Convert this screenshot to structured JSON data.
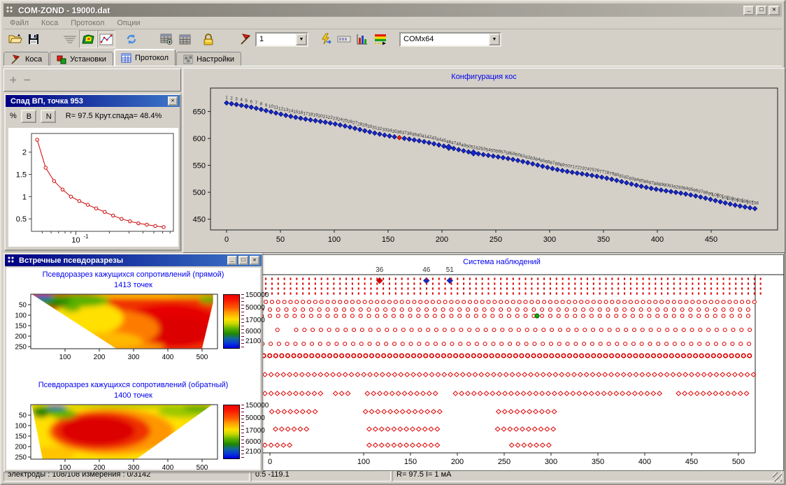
{
  "window": {
    "title": "COM-ZOND - 19000.dat"
  },
  "menu": {
    "items": [
      "Файл",
      "Коса",
      "Протокол",
      "Опции"
    ]
  },
  "toolbar": {
    "point_number": "1",
    "com_port": "COMx64"
  },
  "tabs": {
    "items": [
      "Коса",
      "Установки",
      "Протокол",
      "Настройки"
    ],
    "active": "Протокол"
  },
  "mini_toolbar": {
    "add": "+",
    "remove": "−"
  },
  "decay_window": {
    "title": "Спад ВП, точка 953",
    "percent": "%",
    "btn_b": "B",
    "btn_n": "N",
    "info": "R= 97.5  Крут.спада= 48.4%"
  },
  "pseudo_window": {
    "title": "Встречные псевдоразрезы"
  },
  "statusbar": {
    "sections": [
      "электроды : 108/108 измерения : 0/3142",
      "0.5 -119.1",
      "R= 97.5 I= 1 мА"
    ]
  },
  "chart_data": [
    {
      "id": "decay",
      "type": "line",
      "marker": "circle",
      "color": "#cc0000",
      "x_log": true,
      "x_major_tick_value": 0.1,
      "x_major_tick_label": "10⁻¹",
      "x_range": [
        0.04,
        0.75
      ],
      "y_range": [
        0.22,
        2.42
      ],
      "y_ticks": [
        0.5,
        1,
        1.5,
        2
      ],
      "x": [
        0.045,
        0.0536,
        0.0638,
        0.0759,
        0.0903,
        0.1075,
        0.128,
        0.1523,
        0.1813,
        0.2158,
        0.2568,
        0.3056,
        0.3637,
        0.4329,
        0.5152,
        0.6132
      ],
      "y": [
        2.28,
        1.65,
        1.35,
        1.16,
        1.0,
        0.9,
        0.815,
        0.735,
        0.655,
        0.575,
        0.5,
        0.445,
        0.4,
        0.37,
        0.34,
        0.315
      ]
    },
    {
      "id": "config",
      "type": "scatter",
      "title": "Конфигурация кос",
      "marker": "diamond",
      "color": "#1428c8",
      "n": 108,
      "x0": 0,
      "dx": 4.585,
      "y0": 666,
      "dy": -1.832,
      "x_ticks": [
        0,
        50,
        100,
        150,
        200,
        250,
        300,
        350,
        400,
        450
      ],
      "y_ticks": [
        450,
        500,
        550,
        600,
        650
      ],
      "highlight_red": 36,
      "highlight_big": [
        46,
        51
      ]
    },
    {
      "id": "pseudo_direct",
      "type": "heatmap",
      "title": "Псевдоразрез кажущихся сопротивлений (прямой)",
      "subtitle": "1413 точек",
      "levels": [
        "150000",
        "50000",
        "17000",
        "6000",
        "2100"
      ],
      "x_ticks": [
        100,
        200,
        300,
        400,
        500
      ],
      "y_ticks": [
        50,
        100,
        150,
        200,
        250
      ],
      "region": [
        [
          5,
          2
        ],
        [
          532,
          2
        ],
        [
          532,
          40
        ],
        [
          500,
          258
        ],
        [
          248,
          258
        ]
      ],
      "blobs": [
        {
          "cx": 270,
          "cy": 130,
          "rx": 400,
          "ry": 300,
          "c": "#f03000",
          "o": 1
        },
        {
          "cx": 410,
          "cy": 150,
          "rx": 150,
          "ry": 105,
          "c": "#e60000",
          "o": 1
        },
        {
          "cx": 430,
          "cy": 175,
          "rx": 95,
          "ry": 65,
          "c": "#dc0000",
          "o": 1
        },
        {
          "cx": 255,
          "cy": 165,
          "rx": 120,
          "ry": 85,
          "c": "#ff8800",
          "o": 0.9
        },
        {
          "cx": 165,
          "cy": 115,
          "rx": 105,
          "ry": 80,
          "c": "#ffe000",
          "o": 1
        },
        {
          "cx": 215,
          "cy": 225,
          "rx": 110,
          "ry": 45,
          "c": "#ffc000",
          "o": 0.9
        },
        {
          "cx": 300,
          "cy": 252,
          "rx": 90,
          "ry": 25,
          "c": "#ffb000",
          "o": 0.8
        },
        {
          "cx": 330,
          "cy": 6,
          "rx": 220,
          "ry": 10,
          "c": "#ffe800",
          "o": 0.9
        },
        {
          "cx": 140,
          "cy": 30,
          "rx": 90,
          "ry": 30,
          "c": "#58b000",
          "o": 1
        },
        {
          "cx": 60,
          "cy": 30,
          "rx": 60,
          "ry": 28,
          "c": "#2f9800",
          "o": 1
        },
        {
          "cx": 35,
          "cy": 12,
          "rx": 28,
          "ry": 12,
          "c": "#1048d0",
          "o": 1
        },
        {
          "cx": 75,
          "cy": 50,
          "rx": 30,
          "ry": 16,
          "c": "#187800",
          "o": 0.9
        },
        {
          "cx": 120,
          "cy": 70,
          "rx": 25,
          "ry": 14,
          "c": "#4aa800",
          "o": 0.8
        },
        {
          "cx": 520,
          "cy": 25,
          "rx": 28,
          "ry": 20,
          "c": "#58b000",
          "o": 0.9
        },
        {
          "cx": 470,
          "cy": 8,
          "rx": 60,
          "ry": 8,
          "c": "#c8d800",
          "o": 0.8
        }
      ]
    },
    {
      "id": "pseudo_reverse",
      "type": "heatmap",
      "title": "Псевдоразрез кажущихся сопротивлений (обратный)",
      "subtitle": "1400 точек",
      "levels": [
        "150000",
        "50000",
        "17000",
        "6000",
        "2100"
      ],
      "x_ticks": [
        100,
        200,
        300,
        400,
        500
      ],
      "y_ticks": [
        50,
        100,
        150,
        200,
        250
      ],
      "region": [
        [
          3,
          2
        ],
        [
          528,
          2
        ],
        [
          310,
          258
        ],
        [
          34,
          258
        ]
      ],
      "blobs": [
        {
          "cx": 260,
          "cy": 130,
          "rx": 420,
          "ry": 300,
          "c": "#ffe000",
          "o": 1
        },
        {
          "cx": 235,
          "cy": 130,
          "rx": 185,
          "ry": 110,
          "c": "#ff8800",
          "o": 0.85
        },
        {
          "cx": 205,
          "cy": 125,
          "rx": 145,
          "ry": 92,
          "c": "#f03000",
          "o": 1
        },
        {
          "cx": 195,
          "cy": 125,
          "rx": 110,
          "ry": 70,
          "c": "#dc0000",
          "o": 1
        },
        {
          "cx": 60,
          "cy": 235,
          "rx": 70,
          "ry": 35,
          "c": "#ffc000",
          "o": 0.9
        },
        {
          "cx": 55,
          "cy": 25,
          "rx": 55,
          "ry": 22,
          "c": "#2f9800",
          "o": 1
        },
        {
          "cx": 95,
          "cy": 45,
          "rx": 40,
          "ry": 22,
          "c": "#58b000",
          "o": 0.9
        },
        {
          "cx": 75,
          "cy": 10,
          "rx": 28,
          "ry": 9,
          "c": "#1048d0",
          "o": 1
        },
        {
          "cx": 30,
          "cy": 45,
          "rx": 22,
          "ry": 18,
          "c": "#187800",
          "o": 0.9
        },
        {
          "cx": 300,
          "cy": 6,
          "rx": 200,
          "ry": 9,
          "c": "#78b800",
          "o": 0.8
        },
        {
          "cx": 450,
          "cy": 35,
          "rx": 80,
          "ry": 28,
          "c": "#8cc400",
          "o": 0.85
        },
        {
          "cx": 490,
          "cy": 15,
          "rx": 45,
          "ry": 14,
          "c": "#2f9800",
          "o": 0.9
        }
      ]
    },
    {
      "id": "system",
      "type": "dot-rows",
      "title": "Система наблюдений",
      "color": "#dd0000",
      "x_ticks": [
        0,
        100,
        150,
        200,
        250,
        300,
        350,
        400,
        450,
        500
      ],
      "top_markers": [
        {
          "x": 117,
          "label": "36",
          "color": "#dd0000"
        },
        {
          "x": 167,
          "label": "46",
          "color": "#1428c8"
        },
        {
          "x": 192,
          "label": "51",
          "color": "#1428c8"
        }
      ],
      "rows": [
        {
          "y": 34,
          "t": "dot",
          "segs": [
            [
              -44,
              530,
              6.6
            ]
          ]
        },
        {
          "y": 41,
          "t": "dot",
          "segs": [
            [
              -44,
              530,
              6.6
            ]
          ]
        },
        {
          "y": 48,
          "t": "dot",
          "segs": [
            [
              -44,
              530,
              6.6
            ]
          ]
        },
        {
          "y": 55,
          "t": "dot",
          "segs": [
            [
              -44,
              530,
              6.6
            ]
          ]
        },
        {
          "y": 67,
          "t": "circle",
          "segs": [
            [
              -44,
              518,
              6.6
            ]
          ]
        },
        {
          "y": 78,
          "t": "circle",
          "segs": [
            [
              -44,
              518,
              8.8
            ]
          ]
        },
        {
          "y": 87,
          "t": "circle",
          "segs": [
            [
              -44,
              518,
              8.8
            ]
          ],
          "special": {
            "x": 285,
            "color": "#00b400"
          }
        },
        {
          "y": 107,
          "t": "circle",
          "segs": [
            [
              -40,
              -40,
              9
            ],
            [
              8,
              8,
              9
            ],
            [
              28,
              518,
              8.8
            ]
          ]
        },
        {
          "y": 127,
          "t": "circle",
          "segs": [
            [
              -40,
              -40,
              9
            ],
            [
              -8,
              518,
              8.8
            ]
          ]
        },
        {
          "y": 144,
          "t": "circle-bold",
          "segs": [
            [
              -45,
              512,
              6.4
            ]
          ]
        },
        {
          "y": 171,
          "t": "diamond",
          "segs": [
            [
              -12,
              518,
              6.6
            ]
          ]
        },
        {
          "y": 198,
          "t": "diamond",
          "segs": [
            [
              -12,
              58,
              6.6
            ],
            [
              70,
              88,
              6.6
            ],
            [
              104,
              182,
              6.6
            ],
            [
              198,
              420,
              6.6
            ],
            [
              436,
              512,
              6.6
            ]
          ]
        },
        {
          "y": 224,
          "t": "diamond",
          "segs": [
            [
              2,
              52,
              6.6
            ],
            [
              102,
              183,
              6.6
            ],
            [
              244,
              305,
              6.6
            ]
          ]
        },
        {
          "y": 249,
          "t": "diamond",
          "segs": [
            [
              6,
              44,
              6.6
            ],
            [
              106,
              180,
              6.6
            ],
            [
              243,
              304,
              6.6
            ]
          ]
        },
        {
          "y": 272,
          "t": "diamond",
          "segs": [
            [
              -12,
              26,
              6.6
            ],
            [
              106,
              180,
              6.6
            ],
            [
              258,
              303,
              6.6
            ]
          ]
        }
      ]
    }
  ]
}
